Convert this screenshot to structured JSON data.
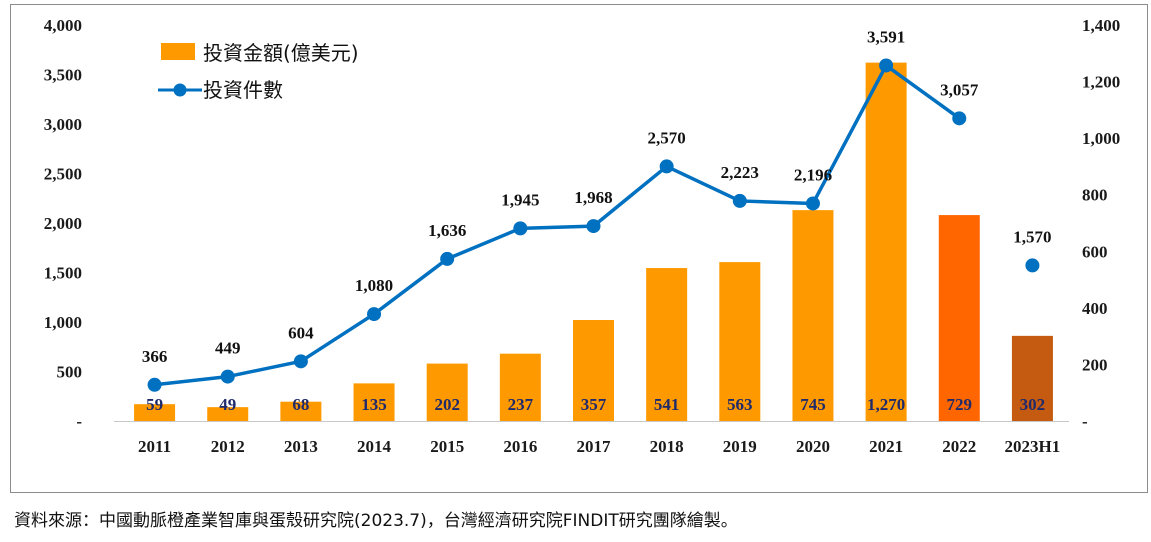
{
  "chart_data": {
    "type": "bar",
    "categories": [
      "2011",
      "2012",
      "2013",
      "2014",
      "2015",
      "2016",
      "2017",
      "2018",
      "2019",
      "2020",
      "2021",
      "2022",
      "2023H1"
    ],
    "series": [
      {
        "name": "投資金額(億美元)",
        "type": "bar",
        "axis": "left",
        "values": [
          170,
          140,
          195,
          380,
          580,
          680,
          1020,
          1545,
          1605,
          2130,
          3620,
          2080,
          860
        ],
        "data_labels": [
          "59",
          "49",
          "68",
          "135",
          "202",
          "237",
          "357",
          "541",
          "563",
          "745",
          "1,270",
          "729",
          "302"
        ],
        "colors": [
          "#FF9900",
          "#FF9900",
          "#FF9900",
          "#FF9900",
          "#FF9900",
          "#FF9900",
          "#FF9900",
          "#FF9900",
          "#FF9900",
          "#FF9900",
          "#FF9900",
          "#FF6600",
          "#C55A11"
        ]
      },
      {
        "name": "投資件數",
        "type": "line",
        "axis": "right",
        "values": [
          128,
          157,
          211,
          378,
          573,
          681,
          689,
          900,
          778,
          769,
          1257,
          1070,
          550
        ],
        "data_labels": [
          "366",
          "449",
          "604",
          "1,080",
          "1,636",
          "1,945",
          "1,968",
          "2,570",
          "2,223",
          "2,196",
          "3,591",
          "3,057",
          "1,570"
        ],
        "connected_through_index": 11,
        "color": "#0070C0"
      }
    ],
    "left_axis": {
      "ylim": [
        0,
        4000
      ],
      "ticks": [
        0,
        500,
        1000,
        1500,
        2000,
        2500,
        3000,
        3500,
        4000
      ],
      "tick_labels": [
        "-",
        "500",
        "1,000",
        "1,500",
        "2,000",
        "2,500",
        "3,000",
        "3,500",
        "4,000"
      ]
    },
    "right_axis": {
      "ylim": [
        0,
        1400
      ],
      "ticks": [
        0,
        200,
        400,
        600,
        800,
        1000,
        1200,
        1400
      ],
      "tick_labels": [
        "-",
        "200",
        "400",
        "600",
        "800",
        "1,000",
        "1,200",
        "1,400"
      ]
    },
    "legend": {
      "position": "top-left"
    },
    "grid": false
  },
  "source_note": "資料來源：中國動脈橙產業智庫與蛋殼研究院(2023.7)，台灣經濟研究院FINDIT研究團隊繪製。"
}
